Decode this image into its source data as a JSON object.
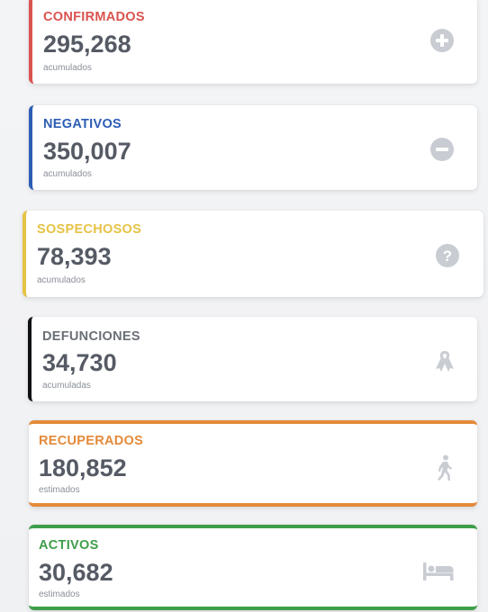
{
  "colors": {
    "confirmados": "#d9534f",
    "negativos": "#2c5db5",
    "sospechosos": "#e6c346",
    "defunciones": "#111111",
    "defunciones_title": "#6b6f76",
    "recuperados": "#e38a3a",
    "activos": "#3e9e4a",
    "icon": "#c9ccd2"
  },
  "cards": [
    {
      "id": "confirmados",
      "title": "CONFIRMADOS",
      "value": "295,268",
      "subtitle": "acumulados",
      "icon": "plus-circle-icon"
    },
    {
      "id": "negativos",
      "title": "NEGATIVOS",
      "value": "350,007",
      "subtitle": "acumulados",
      "icon": "minus-circle-icon"
    },
    {
      "id": "sospechosos",
      "title": "SOSPECHOSOS",
      "value": "78,393",
      "subtitle": "acumulados",
      "icon": "question-circle-icon"
    },
    {
      "id": "defunciones",
      "title": "DEFUNCIONES",
      "value": "34,730",
      "subtitle": "acumuladas",
      "icon": "ribbon-icon"
    },
    {
      "id": "recuperados",
      "title": "RECUPERADOS",
      "value": "180,852",
      "subtitle": "estimados",
      "icon": "walking-person-icon"
    },
    {
      "id": "activos",
      "title": "ACTIVOS",
      "value": "30,682",
      "subtitle": "estimados",
      "icon": "bed-icon"
    }
  ]
}
